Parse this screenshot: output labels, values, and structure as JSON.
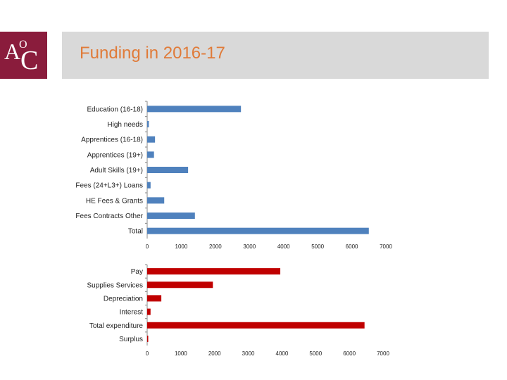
{
  "header": {
    "title": "Funding in 2016-17"
  },
  "logo": {
    "text_a": "A",
    "text_o": "O",
    "text_c": "C"
  },
  "colors": {
    "income_bar": "#4f81bd",
    "expenditure_bar": "#c00000",
    "title": "#e07b39",
    "banner": "#d9d9d9",
    "logo_bg": "#8a1c3c"
  },
  "chart_data": [
    {
      "type": "bar",
      "orientation": "horizontal",
      "categories": [
        "Education (16-18)",
        "High needs",
        "Apprentices (16-18)",
        "Apprentices (19+)",
        "Adult Skills (19+)",
        "Fees (24+L3+) Loans",
        "HE Fees & Grants",
        "Fees Contracts Other",
        "Total"
      ],
      "values": [
        2750,
        50,
        230,
        200,
        1200,
        100,
        500,
        1400,
        6500
      ],
      "xlim": [
        0,
        7000
      ],
      "xticks": [
        0,
        1000,
        2000,
        3000,
        4000,
        5000,
        6000,
        7000
      ],
      "grid": false
    },
    {
      "type": "bar",
      "orientation": "horizontal",
      "categories": [
        "Pay",
        "Supplies Services",
        "Depreciation",
        "Interest",
        "Total expenditure",
        "Surplus"
      ],
      "values": [
        3950,
        1950,
        420,
        100,
        6450,
        20
      ],
      "xlim": [
        0,
        7000
      ],
      "xticks": [
        0,
        1000,
        2000,
        3000,
        4000,
        5000,
        6000,
        7000
      ],
      "grid": false
    }
  ]
}
